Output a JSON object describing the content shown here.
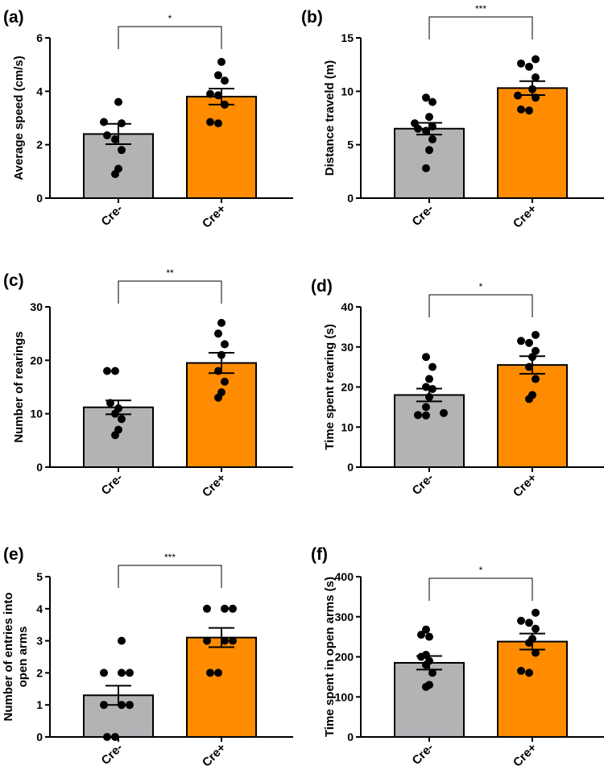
{
  "colors": {
    "cre_minus": "#b3b3b6",
    "cre_plus": "#ff8c00",
    "points": "#000000",
    "axis": "#000000"
  },
  "chart_data": [
    {
      "panel": "(a)",
      "type": "bar",
      "categories": [
        "Cre-",
        "Cre+"
      ],
      "ylabel": "Average speed (cm/s)",
      "ylim": [
        0,
        6
      ],
      "yticks": [
        "0",
        "2",
        "4",
        "6"
      ],
      "ytick_values": [
        0,
        2,
        4,
        6
      ],
      "means": [
        2.4,
        3.8
      ],
      "sem": [
        0.38,
        0.3
      ],
      "points": [
        [
          0.9,
          1.1,
          1.8,
          2.2,
          2.35,
          2.8,
          2.85,
          3.6
        ],
        [
          2.8,
          2.85,
          3.5,
          3.85,
          3.9,
          4.4,
          4.6,
          5.1
        ]
      ],
      "significance": "*"
    },
    {
      "panel": "(b)",
      "type": "bar",
      "categories": [
        "Cre-",
        "Cre+"
      ],
      "ylabel": "Distance traveld (m)",
      "ylim": [
        0,
        15
      ],
      "yticks": [
        "0",
        "5",
        "10",
        "15"
      ],
      "ytick_values": [
        0,
        5,
        10,
        15
      ],
      "means": [
        6.5,
        10.3
      ],
      "sem": [
        0.55,
        0.65
      ],
      "points": [
        [
          2.8,
          4.5,
          5.5,
          6.3,
          6.5,
          6.7,
          7.0,
          7.6,
          9.0,
          9.4
        ],
        [
          8.2,
          8.3,
          9.4,
          9.6,
          10.2,
          11.3,
          12.3,
          12.6,
          13.0
        ]
      ],
      "significance": "***"
    },
    {
      "panel": "(c)",
      "type": "bar",
      "categories": [
        "Cre-",
        "Cre+"
      ],
      "ylabel": "Number of rearings",
      "ylim": [
        0,
        30
      ],
      "yticks": [
        "0",
        "10",
        "20",
        "30"
      ],
      "ytick_values": [
        0,
        10,
        20,
        30
      ],
      "means": [
        11.2,
        19.5
      ],
      "sem": [
        1.3,
        1.9
      ],
      "points": [
        [
          6.0,
          7.0,
          9.0,
          10.0,
          11.0,
          12.0,
          18.0,
          18.0
        ],
        [
          13.0,
          14.0,
          16.0,
          18.0,
          21.0,
          23.0,
          25.0,
          27.0
        ]
      ],
      "significance": "**"
    },
    {
      "panel": "(d)",
      "type": "bar",
      "categories": [
        "Cre-",
        "Cre+"
      ],
      "ylabel": "Time spent rearing (s)",
      "ylim": [
        0,
        40
      ],
      "yticks": [
        "0",
        "10",
        "20",
        "30",
        "40"
      ],
      "ytick_values": [
        0,
        10,
        20,
        30,
        40
      ],
      "means": [
        18.0,
        25.5
      ],
      "sem": [
        1.6,
        2.2
      ],
      "points": [
        [
          12.9,
          13.0,
          13.5,
          15.0,
          17.5,
          19.5,
          20.0,
          22.0,
          25.0,
          27.5
        ],
        [
          17.0,
          18.0,
          22.0,
          25.0,
          27.5,
          29.0,
          31.0,
          31.5,
          33.0
        ]
      ],
      "significance": "*"
    },
    {
      "panel": "(e)",
      "type": "bar",
      "categories": [
        "Cre-",
        "Cre+"
      ],
      "ylabel": "Number of entries into open arms",
      "ylim": [
        0,
        5
      ],
      "yticks": [
        "0",
        "1",
        "2",
        "3",
        "4",
        "5"
      ],
      "ytick_values": [
        0,
        1,
        2,
        3,
        4,
        5
      ],
      "means": [
        1.3,
        3.1
      ],
      "sem": [
        0.3,
        0.3
      ],
      "points": [
        [
          0,
          0,
          1,
          1,
          1,
          2,
          2,
          2,
          3
        ],
        [
          2,
          2,
          3,
          3,
          3,
          4,
          4,
          4
        ]
      ],
      "significance": "***"
    },
    {
      "panel": "(f)",
      "type": "bar",
      "categories": [
        "Cre-",
        "Cre+"
      ],
      "ylabel": "Time spent in open arms  (s)",
      "ylim": [
        0,
        400
      ],
      "yticks": [
        "0",
        "100",
        "200",
        "300",
        "400"
      ],
      "ytick_values": [
        0,
        100,
        200,
        300,
        400
      ],
      "means": [
        185,
        238
      ],
      "sem": [
        17,
        20
      ],
      "points": [
        [
          125,
          130,
          160,
          180,
          190,
          200,
          205,
          250,
          255,
          268
        ],
        [
          160,
          165,
          210,
          235,
          245,
          270,
          285,
          290,
          310
        ]
      ],
      "significance": "*"
    }
  ]
}
